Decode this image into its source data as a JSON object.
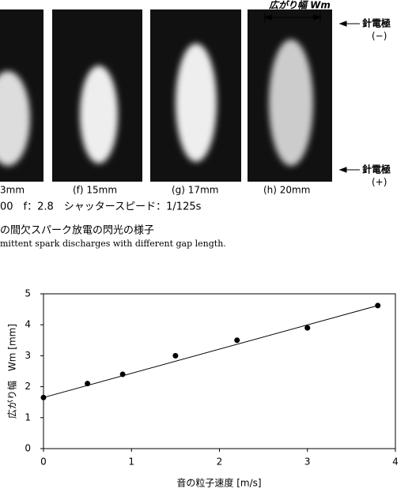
{
  "figure": {
    "width_label": "広がり幅 Wm",
    "electrode_top": "針電極",
    "electrode_top_sign": "(−)",
    "electrode_bottom": "針電極",
    "electrode_bottom_sign": "(+)",
    "panels": [
      "3mm",
      "(f) 15mm",
      "(g) 17mm",
      "(h) 20mm"
    ],
    "settings": "00　f：2.8　シャッタースピード：1/125s",
    "caption_ja": "の間欠スパーク放電の閃光の様子",
    "caption_en": "mittent spark discharges with different gap length."
  },
  "chart_data": {
    "type": "scatter",
    "x_label": "音の粒子速度 [m/s]",
    "y_label": "広がり幅　Wm [mm]",
    "xlim": [
      0,
      4
    ],
    "xticks": [
      0,
      1,
      2,
      3,
      4
    ],
    "ylim": [
      0,
      5
    ],
    "yticks": [
      0,
      1,
      2,
      3,
      4,
      5
    ],
    "series": [
      {
        "color": "#000000",
        "x": [
          0,
          0.5,
          0.9,
          1.5,
          2.2,
          3.0,
          3.8
        ],
        "values": [
          1.65,
          2.1,
          2.4,
          3.0,
          3.5,
          3.9,
          4.62
        ]
      },
      {
        "color": "#000000",
        "x": [
          0,
          3.8
        ],
        "values": [
          1.65,
          4.62
        ]
      }
    ]
  }
}
